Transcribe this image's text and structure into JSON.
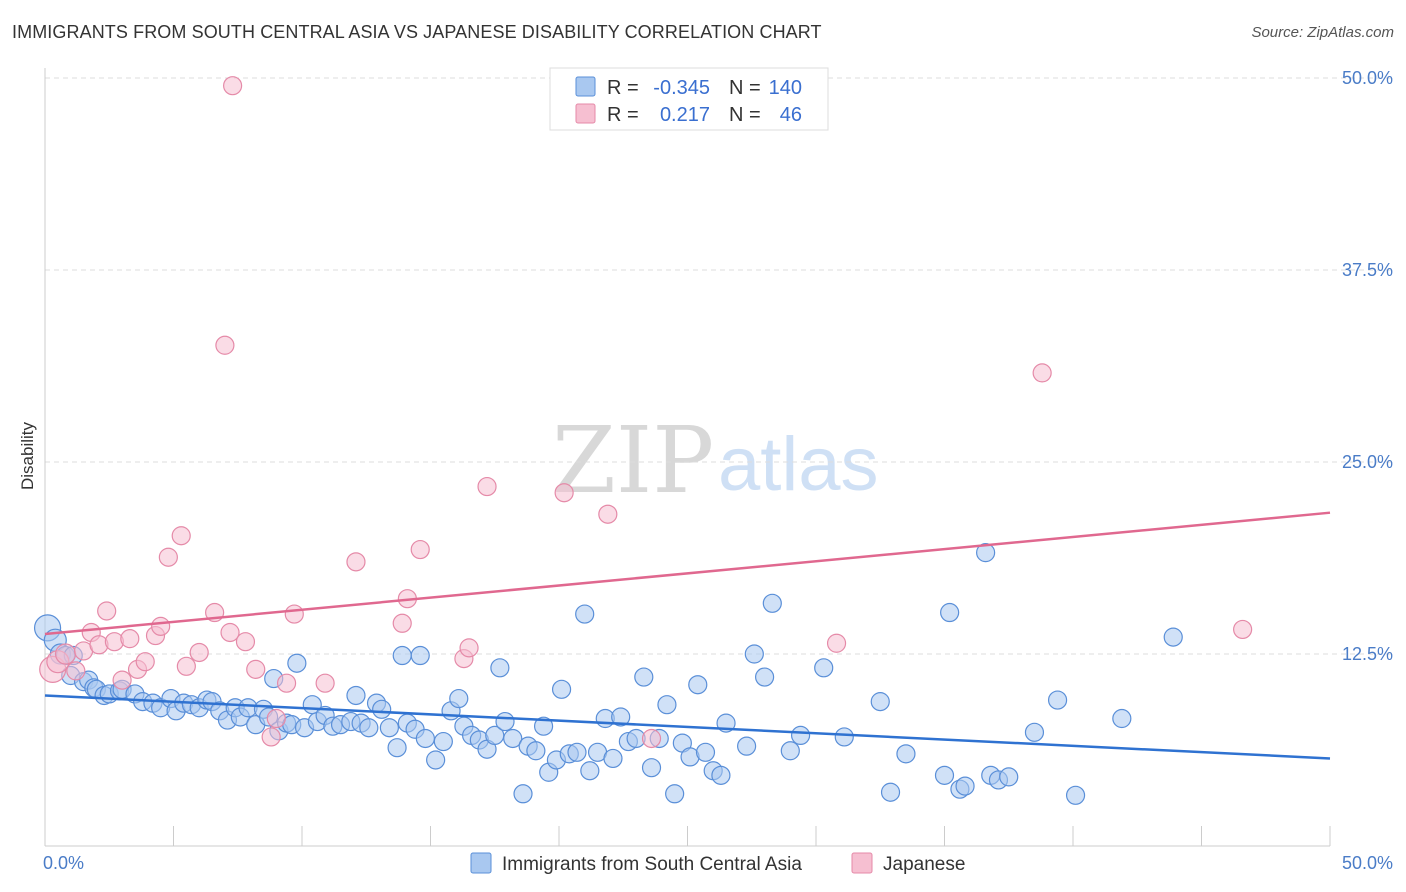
{
  "title": "IMMIGRANTS FROM SOUTH CENTRAL ASIA VS JAPANESE DISABILITY CORRELATION CHART",
  "source": "Source: ZipAtlas.com",
  "watermark": {
    "zip": "ZIP",
    "atlas": "atlas"
  },
  "colors": {
    "blue_fill": "#a9c8f0",
    "blue_stroke": "#5a8fd8",
    "blue_line": "#2f72d1",
    "pink_fill": "#f6bfd1",
    "pink_stroke": "#e58aa8",
    "pink_line": "#e0688f",
    "grid": "#dddddd",
    "tick_label": "#4a7cc7"
  },
  "legend": {
    "rows": [
      {
        "r_label": "R =",
        "r_value": "-0.345",
        "n_label": "N =",
        "n_value": "140",
        "series": "blue"
      },
      {
        "r_label": "R =",
        "r_value": "0.217",
        "n_label": "N =",
        "n_value": "46",
        "series": "pink"
      }
    ]
  },
  "bottom_legend": [
    {
      "label": "Immigrants from South Central Asia",
      "series": "blue"
    },
    {
      "label": "Japanese",
      "series": "pink"
    }
  ],
  "chart_data": {
    "type": "scatter",
    "title": "IMMIGRANTS FROM SOUTH CENTRAL ASIA VS JAPANESE DISABILITY CORRELATION CHART",
    "xlabel": "",
    "ylabel": "Disability",
    "xlim": [
      0,
      50
    ],
    "ylim": [
      0,
      50
    ],
    "x_tick_labels": [
      {
        "value": 0,
        "label": "0.0%"
      },
      {
        "value": 50,
        "label": "50.0%"
      }
    ],
    "y_tick_labels": [
      {
        "value": 12.5,
        "label": "12.5%"
      },
      {
        "value": 25,
        "label": "25.0%"
      },
      {
        "value": 37.5,
        "label": "37.5%"
      },
      {
        "value": 50,
        "label": "50.0%"
      }
    ],
    "grid": true,
    "legend_position": "top-center",
    "series": [
      {
        "name": "Immigrants from South Central Asia",
        "color": "#a9c8f0",
        "R": -0.345,
        "N": 140,
        "trend": [
          [
            0,
            9.8
          ],
          [
            50,
            5.7
          ]
        ],
        "points": [
          [
            0.1,
            14.2
          ],
          [
            0.4,
            13.4
          ],
          [
            0.6,
            12.5
          ],
          [
            0.8,
            12.4
          ],
          [
            1.0,
            11.1
          ],
          [
            1.1,
            12.4
          ],
          [
            1.5,
            10.7
          ],
          [
            1.7,
            10.8
          ],
          [
            1.9,
            10.3
          ],
          [
            2.0,
            10.2
          ],
          [
            2.3,
            9.8
          ],
          [
            2.5,
            9.9
          ],
          [
            2.9,
            10.1
          ],
          [
            3.0,
            10.2
          ],
          [
            3.5,
            9.9
          ],
          [
            3.8,
            9.4
          ],
          [
            4.2,
            9.3
          ],
          [
            4.5,
            9.0
          ],
          [
            4.9,
            9.6
          ],
          [
            5.1,
            8.8
          ],
          [
            5.4,
            9.3
          ],
          [
            5.7,
            9.2
          ],
          [
            6.0,
            9.0
          ],
          [
            6.3,
            9.5
          ],
          [
            6.5,
            9.4
          ],
          [
            6.8,
            8.8
          ],
          [
            7.1,
            8.2
          ],
          [
            7.4,
            9.0
          ],
          [
            7.6,
            8.4
          ],
          [
            7.9,
            9.0
          ],
          [
            8.2,
            7.9
          ],
          [
            8.5,
            8.9
          ],
          [
            8.7,
            8.4
          ],
          [
            8.9,
            10.9
          ],
          [
            9.1,
            7.5
          ],
          [
            9.4,
            8.0
          ],
          [
            9.6,
            7.9
          ],
          [
            9.8,
            11.9
          ],
          [
            10.1,
            7.7
          ],
          [
            10.4,
            9.2
          ],
          [
            10.6,
            8.1
          ],
          [
            10.9,
            8.5
          ],
          [
            11.2,
            7.8
          ],
          [
            11.5,
            7.9
          ],
          [
            11.9,
            8.1
          ],
          [
            12.1,
            9.8
          ],
          [
            12.3,
            8.0
          ],
          [
            12.6,
            7.7
          ],
          [
            12.9,
            9.3
          ],
          [
            13.1,
            8.9
          ],
          [
            13.4,
            7.7
          ],
          [
            13.7,
            6.4
          ],
          [
            13.9,
            12.4
          ],
          [
            14.1,
            8.0
          ],
          [
            14.4,
            7.6
          ],
          [
            14.6,
            12.4
          ],
          [
            14.8,
            7.0
          ],
          [
            15.2,
            5.6
          ],
          [
            15.5,
            6.8
          ],
          [
            15.8,
            8.8
          ],
          [
            16.1,
            9.6
          ],
          [
            16.3,
            7.8
          ],
          [
            16.6,
            7.2
          ],
          [
            16.9,
            6.9
          ],
          [
            17.2,
            6.3
          ],
          [
            17.5,
            7.2
          ],
          [
            17.7,
            11.6
          ],
          [
            17.9,
            8.1
          ],
          [
            18.2,
            7.0
          ],
          [
            18.6,
            3.4
          ],
          [
            18.8,
            6.5
          ],
          [
            19.1,
            6.2
          ],
          [
            19.4,
            7.8
          ],
          [
            19.6,
            4.8
          ],
          [
            19.9,
            5.6
          ],
          [
            20.1,
            10.2
          ],
          [
            20.4,
            6.0
          ],
          [
            20.7,
            6.1
          ],
          [
            21.0,
            15.1
          ],
          [
            21.2,
            4.9
          ],
          [
            21.5,
            6.1
          ],
          [
            21.8,
            8.3
          ],
          [
            22.1,
            5.7
          ],
          [
            22.4,
            8.4
          ],
          [
            22.7,
            6.8
          ],
          [
            23.0,
            7.0
          ],
          [
            23.3,
            11.0
          ],
          [
            23.6,
            5.1
          ],
          [
            23.9,
            7.0
          ],
          [
            24.2,
            9.2
          ],
          [
            24.5,
            3.4
          ],
          [
            24.8,
            6.7
          ],
          [
            25.1,
            5.8
          ],
          [
            25.4,
            10.5
          ],
          [
            25.7,
            6.1
          ],
          [
            26.0,
            4.9
          ],
          [
            26.3,
            4.6
          ],
          [
            26.5,
            8.0
          ],
          [
            27.3,
            6.5
          ],
          [
            27.6,
            12.5
          ],
          [
            28.0,
            11.0
          ],
          [
            28.3,
            15.8
          ],
          [
            29.0,
            6.2
          ],
          [
            29.4,
            7.2
          ],
          [
            30.3,
            11.6
          ],
          [
            31.1,
            7.1
          ],
          [
            32.5,
            9.4
          ],
          [
            32.9,
            3.5
          ],
          [
            33.5,
            6.0
          ],
          [
            35.0,
            4.6
          ],
          [
            35.2,
            15.2
          ],
          [
            35.6,
            3.7
          ],
          [
            35.8,
            3.9
          ],
          [
            36.6,
            19.1
          ],
          [
            36.8,
            4.6
          ],
          [
            37.1,
            4.3
          ],
          [
            37.5,
            4.5
          ],
          [
            38.5,
            7.4
          ],
          [
            39.4,
            9.5
          ],
          [
            40.1,
            3.3
          ],
          [
            41.9,
            8.3
          ],
          [
            43.9,
            13.6
          ]
        ]
      },
      {
        "name": "Japanese",
        "color": "#f6bfd1",
        "R": 0.217,
        "N": 46,
        "trend": [
          [
            0,
            13.8
          ],
          [
            50,
            21.7
          ]
        ],
        "points": [
          [
            0.3,
            11.5
          ],
          [
            0.5,
            12.0
          ],
          [
            0.8,
            12.5
          ],
          [
            1.2,
            11.4
          ],
          [
            1.5,
            12.7
          ],
          [
            1.8,
            13.9
          ],
          [
            2.1,
            13.1
          ],
          [
            2.4,
            15.3
          ],
          [
            2.7,
            13.3
          ],
          [
            3.0,
            10.8
          ],
          [
            3.3,
            13.5
          ],
          [
            3.6,
            11.5
          ],
          [
            3.9,
            12.0
          ],
          [
            4.3,
            13.7
          ],
          [
            4.5,
            14.3
          ],
          [
            4.8,
            18.8
          ],
          [
            5.3,
            20.2
          ],
          [
            5.5,
            11.7
          ],
          [
            6.0,
            12.6
          ],
          [
            6.6,
            15.2
          ],
          [
            7.0,
            32.6
          ],
          [
            7.2,
            13.9
          ],
          [
            7.3,
            49.5
          ],
          [
            7.8,
            13.3
          ],
          [
            8.2,
            11.5
          ],
          [
            8.8,
            7.1
          ],
          [
            9.0,
            8.3
          ],
          [
            9.4,
            10.6
          ],
          [
            9.7,
            15.1
          ],
          [
            10.9,
            10.6
          ],
          [
            12.1,
            18.5
          ],
          [
            13.9,
            14.5
          ],
          [
            14.1,
            16.1
          ],
          [
            14.6,
            19.3
          ],
          [
            16.3,
            12.2
          ],
          [
            16.5,
            12.9
          ],
          [
            17.2,
            23.4
          ],
          [
            20.2,
            23.0
          ],
          [
            21.9,
            21.6
          ],
          [
            23.6,
            7.0
          ],
          [
            30.8,
            13.2
          ],
          [
            38.8,
            30.8
          ],
          [
            46.6,
            14.1
          ]
        ]
      }
    ]
  }
}
